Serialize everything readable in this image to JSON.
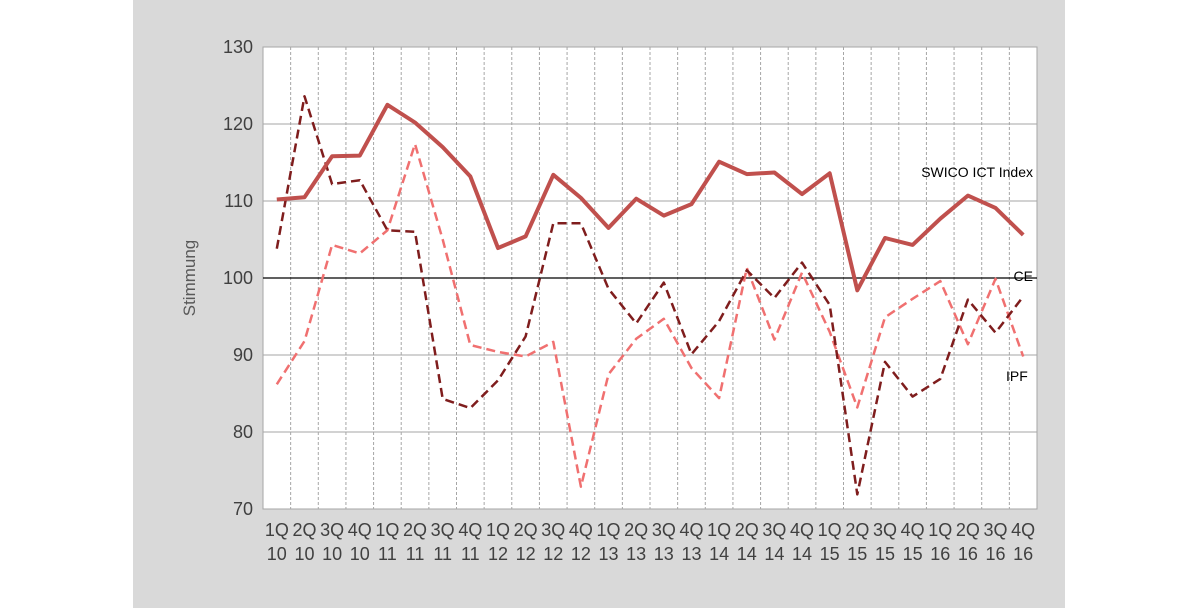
{
  "chart_data": {
    "type": "line",
    "title": "",
    "xlabel": "",
    "ylabel": "Stimmung",
    "ylim": [
      70,
      130
    ],
    "yticks": [
      "70",
      "80",
      "90",
      "100",
      "110",
      "120",
      "130"
    ],
    "grid": true,
    "categories": [
      [
        "1Q",
        "10"
      ],
      [
        "2Q",
        "10"
      ],
      [
        "3Q",
        "10"
      ],
      [
        "4Q",
        "10"
      ],
      [
        "1Q",
        "11"
      ],
      [
        "2Q",
        "11"
      ],
      [
        "3Q",
        "11"
      ],
      [
        "4Q",
        "11"
      ],
      [
        "1Q",
        "12"
      ],
      [
        "2Q",
        "12"
      ],
      [
        "3Q",
        "12"
      ],
      [
        "4Q",
        "12"
      ],
      [
        "1Q",
        "13"
      ],
      [
        "2Q",
        "13"
      ],
      [
        "3Q",
        "13"
      ],
      [
        "4Q",
        "13"
      ],
      [
        "1Q",
        "14"
      ],
      [
        "2Q",
        "14"
      ],
      [
        "3Q",
        "14"
      ],
      [
        "4Q",
        "14"
      ],
      [
        "1Q",
        "15"
      ],
      [
        "2Q",
        "15"
      ],
      [
        "3Q",
        "15"
      ],
      [
        "4Q",
        "15"
      ],
      [
        "1Q",
        "16"
      ],
      [
        "2Q",
        "16"
      ],
      [
        "3Q",
        "16"
      ],
      [
        "4Q",
        "16"
      ]
    ],
    "reference_line": 100,
    "series": [
      {
        "name": "SWICO ICT Index",
        "color": "#c0504d",
        "style": "solid",
        "values": [
          110.2,
          110.5,
          115.8,
          115.9,
          122.5,
          120.2,
          117.0,
          113.2,
          103.9,
          105.4,
          113.4,
          110.4,
          106.5,
          110.3,
          108.1,
          109.6,
          115.1,
          113.5,
          113.7,
          110.9,
          113.6,
          98.4,
          105.2,
          104.3,
          107.7,
          110.7,
          109.1,
          105.6
        ]
      },
      {
        "name": "CE",
        "color": "#7f1d1d",
        "style": "dashed",
        "values": [
          103.8,
          123.6,
          112.2,
          112.7,
          106.2,
          106.0,
          84.3,
          83.1,
          86.7,
          92.4,
          107.1,
          107.1,
          98.6,
          94.1,
          99.4,
          90.1,
          94.4,
          101.0,
          97.4,
          102.0,
          96.5,
          71.9,
          89.1,
          84.6,
          86.9,
          97.2,
          92.9,
          97.6
        ]
      },
      {
        "name": "IPF",
        "color": "#f07070",
        "style": "dashed",
        "values": [
          86.2,
          91.8,
          104.3,
          103.2,
          106.2,
          117.4,
          105.0,
          91.3,
          90.4,
          89.8,
          91.7,
          72.9,
          87.5,
          92.1,
          94.7,
          88.3,
          84.4,
          101.3,
          92.0,
          100.7,
          93.0,
          83.2,
          94.9,
          97.3,
          99.6,
          91.4,
          99.9,
          89.8
        ]
      }
    ]
  }
}
